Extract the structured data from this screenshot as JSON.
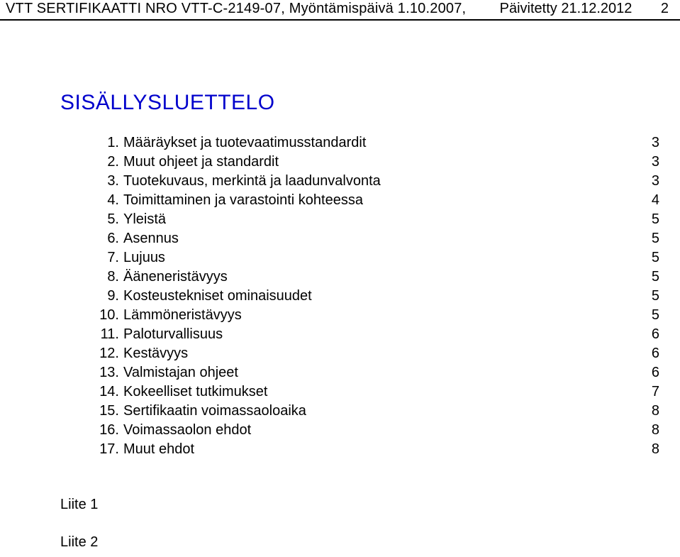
{
  "header": {
    "left": "VTT SERTIFIKAATTI NRO VTT-C-2149-07, Myöntämispäivä 1.10.2007,",
    "right": "Päivitetty 21.12.2012",
    "page": "2"
  },
  "toc": {
    "title": "SISÄLLYSLUETTELO",
    "items": [
      {
        "n": "1.",
        "label": "Määräykset ja tuotevaatimusstandardit",
        "page": "3"
      },
      {
        "n": "2.",
        "label": "Muut ohjeet ja standardit",
        "page": "3"
      },
      {
        "n": "3.",
        "label": "Tuotekuvaus, merkintä ja laadunvalvonta",
        "page": "3"
      },
      {
        "n": "4.",
        "label": "Toimittaminen ja varastointi kohteessa",
        "page": "4"
      },
      {
        "n": "5.",
        "label": "Yleistä",
        "page": "5"
      },
      {
        "n": "6.",
        "label": "Asennus",
        "page": "5"
      },
      {
        "n": "7.",
        "label": "Lujuus",
        "page": "5"
      },
      {
        "n": "8.",
        "label": "Ääneneristävyys",
        "page": "5"
      },
      {
        "n": "9.",
        "label": "Kosteustekniset ominaisuudet",
        "page": "5"
      },
      {
        "n": "10.",
        "label": "Lämmöneristävyys",
        "page": "5"
      },
      {
        "n": "11.",
        "label": "Paloturvallisuus",
        "page": "6"
      },
      {
        "n": "12.",
        "label": "Kestävyys",
        "page": "6"
      },
      {
        "n": "13.",
        "label": "Valmistajan ohjeet",
        "page": "6"
      },
      {
        "n": "14.",
        "label": "Kokeelliset tutkimukset",
        "page": "7"
      },
      {
        "n": "15.",
        "label": "Sertifikaatin voimassaoloaika",
        "page": "8"
      },
      {
        "n": "16.",
        "label": "Voimassaolon ehdot",
        "page": "8"
      },
      {
        "n": "17.",
        "label": "Muut ehdot",
        "page": "8"
      }
    ]
  },
  "appendices": {
    "a1": "Liite 1",
    "a2": "Liite 2"
  }
}
